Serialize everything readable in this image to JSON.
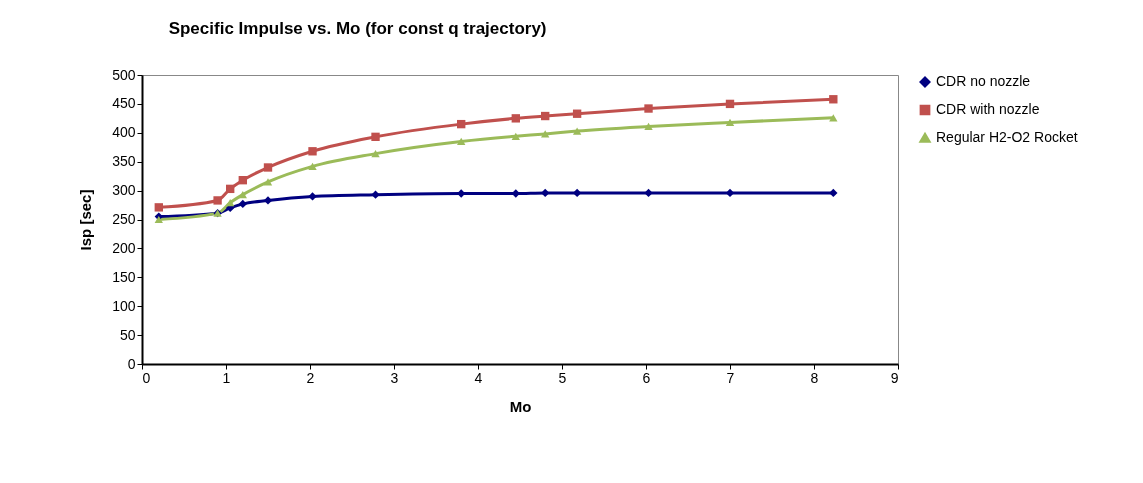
{
  "chart_data": {
    "type": "line",
    "title": "Specific Impulse vs. Mo (for const q trajectory)",
    "xlabel": "Mo",
    "ylabel": "Isp [sec]",
    "x": [
      0.2,
      0.9,
      1.05,
      1.2,
      1.5,
      2.03,
      2.78,
      3.8,
      4.45,
      4.8,
      5.18,
      6.03,
      7.0,
      8.23
    ],
    "xlim": [
      0,
      9
    ],
    "xticks": [
      0,
      1,
      2,
      3,
      4,
      5,
      6,
      7,
      8,
      9
    ],
    "ylim": [
      0,
      500
    ],
    "yticks": [
      0,
      50,
      100,
      150,
      200,
      250,
      300,
      350,
      400,
      450,
      500
    ],
    "grid": false,
    "legend": "right",
    "series": [
      {
        "name": "CDR no nozzle",
        "color": "#000080",
        "marker": "diamond",
        "values": [
          255,
          261,
          270,
          277,
          283,
          290,
          293,
          295,
          295,
          296,
          296,
          296,
          296,
          296
        ]
      },
      {
        "name": "CDR with nozzle",
        "color": "#c0504d",
        "marker": "square",
        "values": [
          271,
          283,
          303,
          318,
          340,
          368,
          393,
          415,
          425,
          429,
          433,
          442,
          450,
          458
        ]
      },
      {
        "name": "Regular H2-O2 Rocket",
        "color": "#9bbb59",
        "marker": "triangle",
        "values": [
          250,
          261,
          279,
          293,
          315,
          342,
          364,
          385,
          394,
          398,
          403,
          411,
          418,
          426
        ]
      }
    ]
  }
}
